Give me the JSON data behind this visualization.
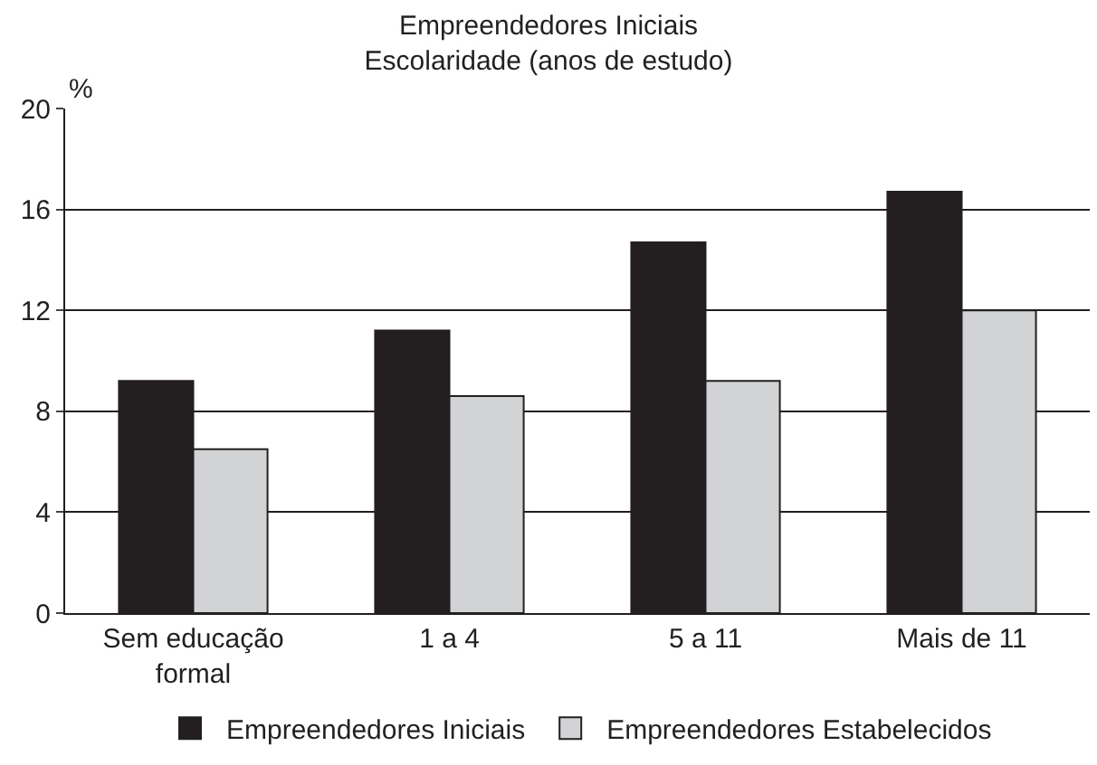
{
  "chart_data": {
    "type": "bar",
    "title": "Empreendedores Iniciais\nEscolaridade (anos de estudo)",
    "ylabel": "%",
    "categories": [
      "Sem educação formal",
      "1 a 4",
      "5 a 11",
      "Mais de 11"
    ],
    "series": [
      {
        "name": "Empreendedores Iniciais",
        "color": "#231f20",
        "values": [
          9.2,
          11.2,
          14.7,
          16.7
        ]
      },
      {
        "name": "Empreendedores Estabelecidos",
        "color": "#d1d3d4",
        "values": [
          6.5,
          8.6,
          9.2,
          12.0
        ]
      }
    ],
    "ylim": [
      0,
      20
    ],
    "yticks": [
      0,
      4,
      8,
      12,
      16,
      20
    ],
    "grid": "y",
    "legend": "bottom"
  }
}
